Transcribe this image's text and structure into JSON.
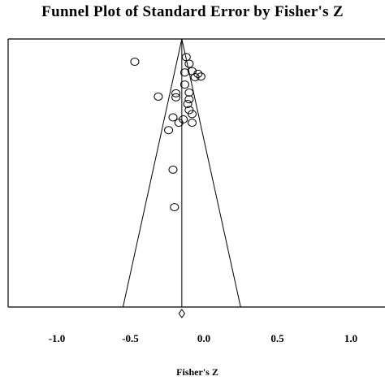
{
  "chart_data": {
    "type": "scatter",
    "title": "Funnel Plot of Standard Error by Fisher's Z",
    "xlabel": "Fisher's Z",
    "ylabel": "",
    "xlim": [
      -1.2,
      1.2
    ],
    "ylim": [
      0.0,
      0.4
    ],
    "x_ticks": [
      -1.0,
      -0.5,
      0.0,
      0.5,
      1.0
    ],
    "x_tick_labels": [
      "-1.0",
      "-0.5",
      "0.0",
      "0.5",
      "1.0"
    ],
    "y_inverted": true,
    "grid": false,
    "summary_effect": -0.15,
    "funnel": {
      "apex": {
        "x": -0.15,
        "y": 0.0
      },
      "base_left": {
        "x": -0.55,
        "y": 0.4
      },
      "base_right": {
        "x": 0.25,
        "y": 0.4
      }
    },
    "diamond": {
      "x": -0.15,
      "half_width": 0.02
    },
    "points": [
      {
        "x": -0.47,
        "y": 0.034
      },
      {
        "x": -0.12,
        "y": 0.027
      },
      {
        "x": -0.1,
        "y": 0.037
      },
      {
        "x": -0.08,
        "y": 0.048
      },
      {
        "x": -0.04,
        "y": 0.052
      },
      {
        "x": -0.02,
        "y": 0.056
      },
      {
        "x": -0.13,
        "y": 0.05
      },
      {
        "x": -0.06,
        "y": 0.057
      },
      {
        "x": -0.13,
        "y": 0.068
      },
      {
        "x": -0.1,
        "y": 0.08
      },
      {
        "x": -0.19,
        "y": 0.081
      },
      {
        "x": -0.19,
        "y": 0.087
      },
      {
        "x": -0.31,
        "y": 0.086
      },
      {
        "x": -0.1,
        "y": 0.09
      },
      {
        "x": -0.11,
        "y": 0.097
      },
      {
        "x": -0.1,
        "y": 0.106
      },
      {
        "x": -0.08,
        "y": 0.112
      },
      {
        "x": -0.21,
        "y": 0.117
      },
      {
        "x": -0.14,
        "y": 0.12
      },
      {
        "x": -0.08,
        "y": 0.125
      },
      {
        "x": -0.17,
        "y": 0.125
      },
      {
        "x": -0.24,
        "y": 0.136
      },
      {
        "x": -0.21,
        "y": 0.195
      },
      {
        "x": -0.2,
        "y": 0.251
      }
    ]
  }
}
